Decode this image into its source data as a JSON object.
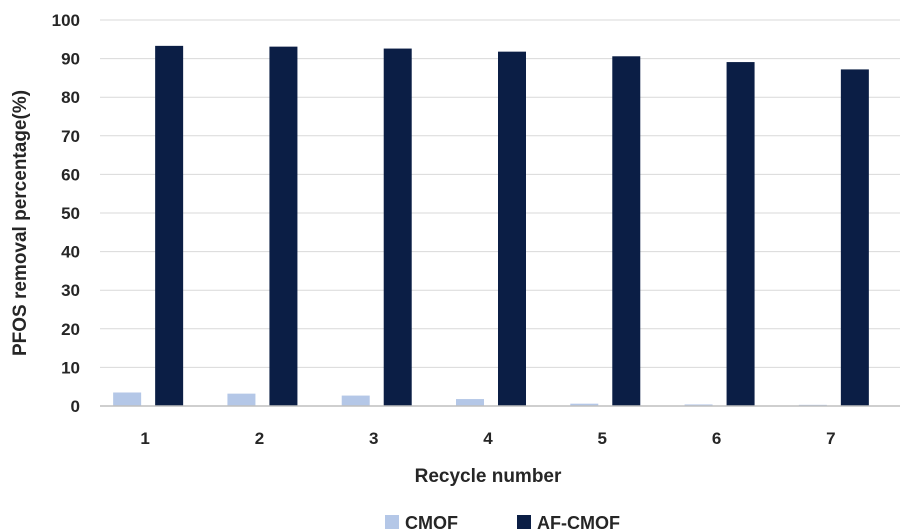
{
  "chart_data": {
    "type": "bar",
    "categories": [
      "1",
      "2",
      "3",
      "4",
      "5",
      "6",
      "7"
    ],
    "series": [
      {
        "name": "CMOF",
        "color": "#b4c7e7",
        "values": [
          3.5,
          3.2,
          2.7,
          1.8,
          0.6,
          0.4,
          0.3
        ]
      },
      {
        "name": "AF-CMOF",
        "color": "#0b1e45",
        "values": [
          93.3,
          93.1,
          92.6,
          91.8,
          90.6,
          89.1,
          87.2
        ]
      }
    ],
    "title": "",
    "xlabel": "Recycle number",
    "ylabel": "PFOS removal percentage(%)",
    "ylim": [
      0,
      100
    ],
    "yticks": [
      0,
      10,
      20,
      30,
      40,
      50,
      60,
      70,
      80,
      90,
      100
    ],
    "grid": true,
    "legend_position": "bottom"
  }
}
